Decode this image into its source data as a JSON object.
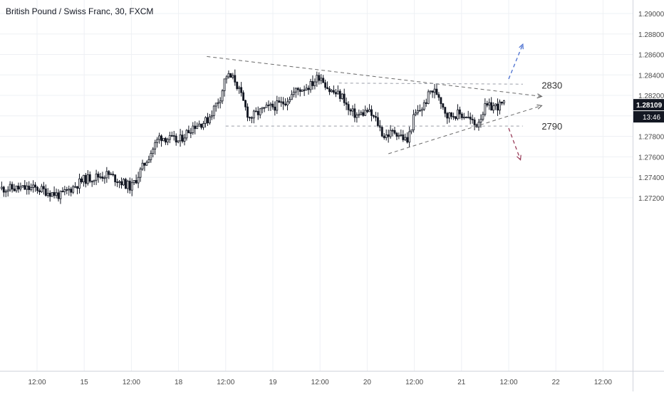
{
  "chart_data": {
    "type": "candlestick",
    "title": "British Pound / Swiss Franc, 30, FXCM",
    "y_axis": {
      "position": "right",
      "range": [
        1.271,
        1.291
      ],
      "ticks": [
        "1.29000",
        "1.28800",
        "1.28600",
        "1.28400",
        "1.28200",
        "1.28000",
        "1.27800",
        "1.27600",
        "1.27400",
        "1.27200"
      ],
      "tick_values": [
        1.29,
        1.288,
        1.286,
        1.284,
        1.282,
        1.28,
        1.278,
        1.276,
        1.274,
        1.272
      ]
    },
    "x_axis": {
      "ticks": [
        "12:00",
        "15",
        "12:00",
        "18",
        "12:00",
        "19",
        "12:00",
        "20",
        "12:00",
        "21",
        "12:00",
        "22",
        "12:00"
      ],
      "tick_positions": [
        0,
        1,
        2,
        3,
        4,
        5,
        6,
        7,
        8,
        9,
        10,
        11,
        12
      ]
    },
    "grid": true,
    "colors": {
      "up": "#131722",
      "down": "#131722",
      "up_body": "#ffffff",
      "down_body": "#131722",
      "grid": "#eef0f4",
      "axis_text": "#4a4a4a",
      "dash": "#6a6a6a",
      "arrow_up": "#4a6fd0",
      "arrow_down": "#9a3d5a"
    },
    "price_label": {
      "value": "1.28109",
      "time": "13:46",
      "price": 1.28109
    },
    "annotations": [
      {
        "text": "2830",
        "price": 1.283
      },
      {
        "text": "2790",
        "price": 1.279
      }
    ],
    "key_points": [
      {
        "t": 0.0,
        "price": 1.2729
      },
      {
        "t": 0.5,
        "price": 1.2722
      },
      {
        "t": 1.0,
        "price": 1.2738
      },
      {
        "t": 1.5,
        "price": 1.2743
      },
      {
        "t": 2.0,
        "price": 1.273
      },
      {
        "t": 2.3,
        "price": 1.2755
      },
      {
        "t": 2.6,
        "price": 1.278
      },
      {
        "t": 3.0,
        "price": 1.2775
      },
      {
        "t": 3.3,
        "price": 1.279
      },
      {
        "t": 3.6,
        "price": 1.2795
      },
      {
        "t": 3.9,
        "price": 1.282
      },
      {
        "t": 4.0,
        "price": 1.284
      },
      {
        "t": 4.2,
        "price": 1.2835
      },
      {
        "t": 4.4,
        "price": 1.281
      },
      {
        "t": 4.5,
        "price": 1.2798
      },
      {
        "t": 4.8,
        "price": 1.2806
      },
      {
        "t": 5.2,
        "price": 1.2812
      },
      {
        "t": 5.5,
        "price": 1.2825
      },
      {
        "t": 5.8,
        "price": 1.283
      },
      {
        "t": 6.0,
        "price": 1.284
      },
      {
        "t": 6.2,
        "price": 1.2825
      },
      {
        "t": 6.5,
        "price": 1.2818
      },
      {
        "t": 6.6,
        "price": 1.2805
      },
      {
        "t": 6.8,
        "price": 1.28
      },
      {
        "t": 7.0,
        "price": 1.2805
      },
      {
        "t": 7.2,
        "price": 1.2795
      },
      {
        "t": 7.35,
        "price": 1.278
      },
      {
        "t": 7.6,
        "price": 1.2785
      },
      {
        "t": 7.85,
        "price": 1.2775
      },
      {
        "t": 8.0,
        "price": 1.28
      },
      {
        "t": 8.2,
        "price": 1.281
      },
      {
        "t": 8.35,
        "price": 1.2825
      },
      {
        "t": 8.5,
        "price": 1.2822
      },
      {
        "t": 8.7,
        "price": 1.28
      },
      {
        "t": 8.9,
        "price": 1.2802
      },
      {
        "t": 9.1,
        "price": 1.28
      },
      {
        "t": 9.3,
        "price": 1.279
      },
      {
        "t": 9.5,
        "price": 1.2808
      },
      {
        "t": 9.8,
        "price": 1.281
      },
      {
        "t": 9.9,
        "price": 1.2811
      }
    ],
    "trendlines": [
      {
        "name": "upper-trendline",
        "from": {
          "t": 3.6,
          "price": 1.2858
        },
        "to": {
          "t": 10.7,
          "price": 1.2819
        },
        "arrow": true
      },
      {
        "name": "lower-trendline",
        "from": {
          "t": 7.45,
          "price": 1.2763
        },
        "to": {
          "t": 10.7,
          "price": 1.281
        },
        "arrow": true
      },
      {
        "name": "resistance-line",
        "from": {
          "t": 6.4,
          "price": 1.2832
        },
        "to": {
          "t": 10.3,
          "price": 1.2831
        },
        "arrow": false
      },
      {
        "name": "support-line",
        "from": {
          "t": 4.0,
          "price": 1.279
        },
        "to": {
          "t": 10.3,
          "price": 1.279
        },
        "arrow": false
      }
    ],
    "projections": [
      {
        "name": "projection-up-arrow",
        "from": {
          "t": 10.0,
          "price": 1.2836
        },
        "to": {
          "t": 10.3,
          "price": 1.287
        },
        "color": "arrow_up"
      },
      {
        "name": "projection-down-arrow",
        "from": {
          "t": 10.0,
          "price": 1.2788
        },
        "to": {
          "t": 10.25,
          "price": 1.2757
        },
        "color": "arrow_down"
      }
    ]
  }
}
